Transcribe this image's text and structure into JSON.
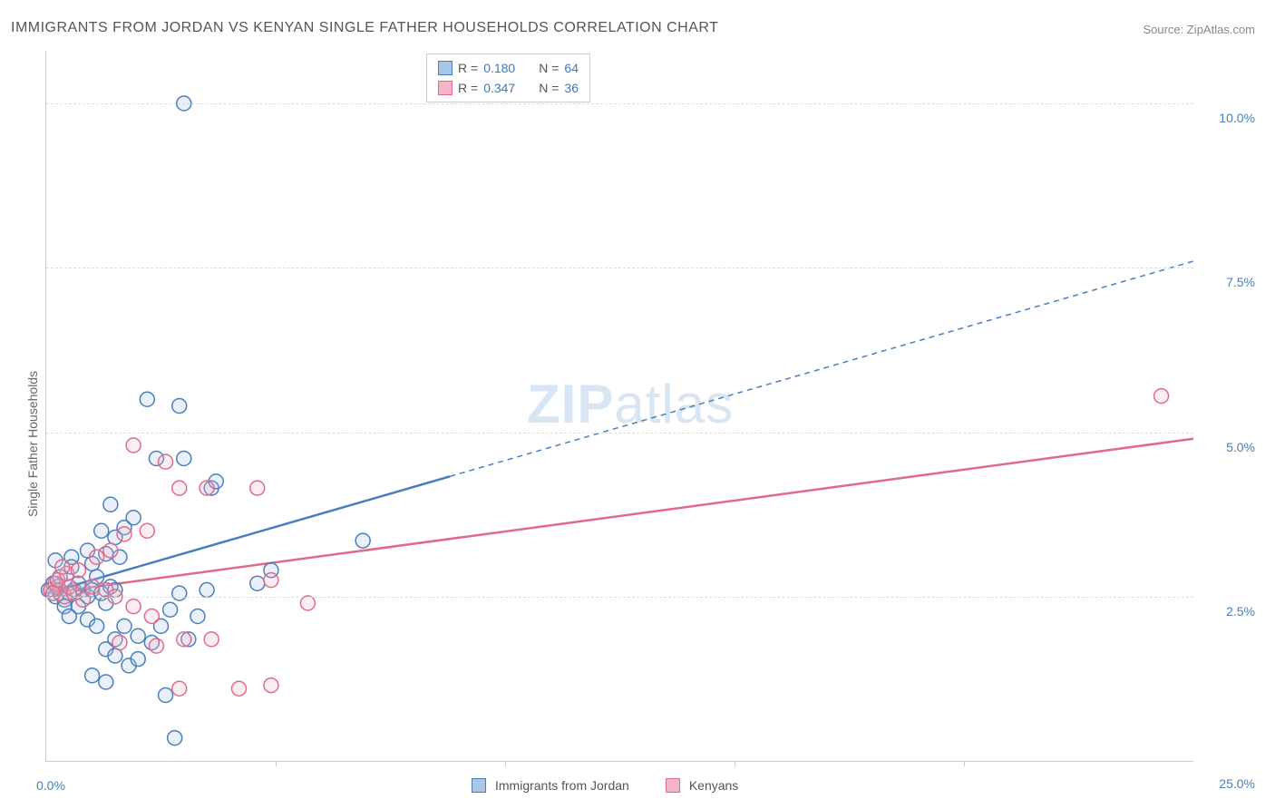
{
  "title": "IMMIGRANTS FROM JORDAN VS KENYAN SINGLE FATHER HOUSEHOLDS CORRELATION CHART",
  "source_label": "Source: ZipAtlas.com",
  "watermark_bold": "ZIP",
  "watermark_light": "atlas",
  "chart": {
    "type": "scatter",
    "background_color": "#ffffff",
    "grid_color": "#dddddd",
    "axis_color": "#cccccc",
    "xlim": [
      0,
      25
    ],
    "ylim": [
      0,
      10.8
    ],
    "x_origin_label": "0.0%",
    "x_max_label": "25.0%",
    "x_ticks": [
      5,
      10,
      15,
      20
    ],
    "y_ticks": [
      {
        "v": 2.5,
        "label": "2.5%"
      },
      {
        "v": 5.0,
        "label": "5.0%"
      },
      {
        "v": 7.5,
        "label": "7.5%"
      },
      {
        "v": 10.0,
        "label": "10.0%"
      }
    ],
    "y_axis_label": "Single Father Households",
    "tick_label_color": "#4a7ebb",
    "marker_radius": 8,
    "marker_stroke_width": 1.5,
    "marker_fill_opacity": 0.25,
    "series": [
      {
        "name": "Immigrants from Jordan",
        "stroke": "#4a7ebb",
        "fill": "#a9c5e8",
        "r_value": "0.180",
        "n_value": "64",
        "trend": {
          "x1": 0,
          "y1": 2.55,
          "x2": 25,
          "y2": 7.6,
          "solid_until_x": 8.8
        },
        "points": [
          [
            0.1,
            2.6
          ],
          [
            0.2,
            2.5
          ],
          [
            0.3,
            2.55
          ],
          [
            0.15,
            2.7
          ],
          [
            0.25,
            2.65
          ],
          [
            0.05,
            2.6
          ],
          [
            0.3,
            2.8
          ],
          [
            0.2,
            3.05
          ],
          [
            0.4,
            2.45
          ],
          [
            0.5,
            2.55
          ],
          [
            0.6,
            2.6
          ],
          [
            0.55,
            3.1
          ],
          [
            0.7,
            2.7
          ],
          [
            0.8,
            2.6
          ],
          [
            0.4,
            2.35
          ],
          [
            0.5,
            2.2
          ],
          [
            0.9,
            2.5
          ],
          [
            1.0,
            2.6
          ],
          [
            0.9,
            3.2
          ],
          [
            1.1,
            2.8
          ],
          [
            1.2,
            2.55
          ],
          [
            1.3,
            2.4
          ],
          [
            1.4,
            2.65
          ],
          [
            1.5,
            2.6
          ],
          [
            1.6,
            3.1
          ],
          [
            1.5,
            3.4
          ],
          [
            1.7,
            3.55
          ],
          [
            1.9,
            3.7
          ],
          [
            1.4,
            3.9
          ],
          [
            1.2,
            3.5
          ],
          [
            1.3,
            3.15
          ],
          [
            1.0,
            3.0
          ],
          [
            0.55,
            2.95
          ],
          [
            0.7,
            2.35
          ],
          [
            0.9,
            2.15
          ],
          [
            1.1,
            2.05
          ],
          [
            1.7,
            2.05
          ],
          [
            1.5,
            1.85
          ],
          [
            2.0,
            1.9
          ],
          [
            2.3,
            1.8
          ],
          [
            1.3,
            1.7
          ],
          [
            1.5,
            1.6
          ],
          [
            1.8,
            1.45
          ],
          [
            2.0,
            1.55
          ],
          [
            2.5,
            2.05
          ],
          [
            2.7,
            2.3
          ],
          [
            2.9,
            2.55
          ],
          [
            3.3,
            2.2
          ],
          [
            3.1,
            1.85
          ],
          [
            3.5,
            2.6
          ],
          [
            3.6,
            4.15
          ],
          [
            3.7,
            4.25
          ],
          [
            3.0,
            4.6
          ],
          [
            2.4,
            4.6
          ],
          [
            2.2,
            5.5
          ],
          [
            2.9,
            5.4
          ],
          [
            1.0,
            1.3
          ],
          [
            1.3,
            1.2
          ],
          [
            2.6,
            1.0
          ],
          [
            2.8,
            0.35
          ],
          [
            3.0,
            10.0
          ],
          [
            6.9,
            3.35
          ],
          [
            4.6,
            2.7
          ],
          [
            4.9,
            2.9
          ]
        ]
      },
      {
        "name": "Kenyans",
        "stroke": "#e06a8a",
        "fill": "#f2b6c6",
        "r_value": "0.347",
        "n_value": "36",
        "trend": {
          "x1": 0,
          "y1": 2.55,
          "x2": 25,
          "y2": 4.9,
          "solid_until_x": 25
        },
        "points": [
          [
            0.1,
            2.6
          ],
          [
            0.2,
            2.7
          ],
          [
            0.3,
            2.6
          ],
          [
            0.4,
            2.5
          ],
          [
            0.5,
            2.65
          ],
          [
            0.15,
            2.55
          ],
          [
            0.25,
            2.75
          ],
          [
            0.45,
            2.85
          ],
          [
            0.35,
            2.95
          ],
          [
            0.6,
            2.55
          ],
          [
            0.8,
            2.45
          ],
          [
            1.0,
            2.65
          ],
          [
            0.7,
            2.9
          ],
          [
            1.3,
            2.6
          ],
          [
            1.5,
            2.5
          ],
          [
            1.1,
            3.1
          ],
          [
            1.4,
            3.2
          ],
          [
            1.7,
            3.45
          ],
          [
            2.2,
            3.5
          ],
          [
            1.9,
            4.8
          ],
          [
            2.6,
            4.55
          ],
          [
            2.9,
            4.15
          ],
          [
            3.5,
            4.15
          ],
          [
            4.6,
            4.15
          ],
          [
            1.6,
            1.8
          ],
          [
            1.9,
            2.35
          ],
          [
            2.3,
            2.2
          ],
          [
            2.4,
            1.75
          ],
          [
            3.0,
            1.85
          ],
          [
            3.6,
            1.85
          ],
          [
            2.9,
            1.1
          ],
          [
            4.2,
            1.1
          ],
          [
            4.9,
            1.15
          ],
          [
            4.9,
            2.75
          ],
          [
            5.7,
            2.4
          ],
          [
            24.3,
            5.55
          ]
        ]
      }
    ]
  },
  "legend_top": {
    "r_prefix": "R",
    "equals": " = ",
    "n_prefix": "N"
  },
  "legend_bottom": [
    {
      "swatch_stroke": "#4a7ebb",
      "swatch_fill": "#a9c5e8",
      "label": "Immigrants from Jordan"
    },
    {
      "swatch_stroke": "#e06a8a",
      "swatch_fill": "#f2b6c6",
      "label": "Kenyans"
    }
  ]
}
